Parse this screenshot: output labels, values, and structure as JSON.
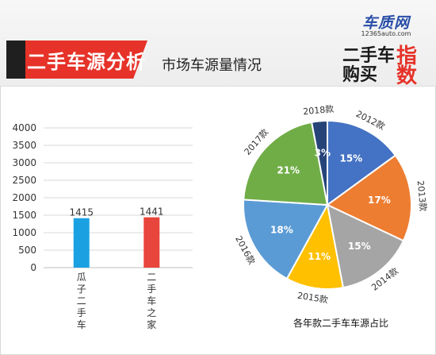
{
  "header": {
    "title": "二手车源分析",
    "subtitle": "市场车源量情况",
    "logo_site": "车质网",
    "logo_url": "12365auto.com",
    "logo_line1": "二手车",
    "logo_line2": "购买",
    "logo_accent1": "指",
    "logo_accent2": "数"
  },
  "chart_data": [
    {
      "type": "bar",
      "categories": [
        "瓜子二手车",
        "二手车之家"
      ],
      "values": [
        1415,
        1441
      ],
      "ylim": [
        0,
        4000
      ],
      "yticks": [
        0,
        500,
        1000,
        1500,
        2000,
        2500,
        3000,
        3500,
        4000
      ],
      "grid": true,
      "colors": [
        "#1ba1e2",
        "#e8453c"
      ]
    },
    {
      "type": "pie",
      "title": "各年款二手车车源占比",
      "slices": [
        {
          "label": "2012款",
          "pct_label": "15%",
          "value": 15,
          "color": "#4472c4"
        },
        {
          "label": "2013款",
          "pct_label": "17%",
          "value": 17,
          "color": "#ed7d31"
        },
        {
          "label": "2014款",
          "pct_label": "15%",
          "value": 15,
          "color": "#a5a5a5"
        },
        {
          "label": "2015款",
          "pct_label": "11%",
          "value": 11,
          "color": "#ffc000"
        },
        {
          "label": "2016款",
          "pct_label": "18%",
          "value": 18,
          "color": "#5b9bd5"
        },
        {
          "label": "2017款",
          "pct_label": "21%",
          "value": 21,
          "color": "#70ad47"
        },
        {
          "label": "2018款",
          "pct_label": "3%",
          "value": 3,
          "color": "#264478"
        }
      ]
    }
  ]
}
